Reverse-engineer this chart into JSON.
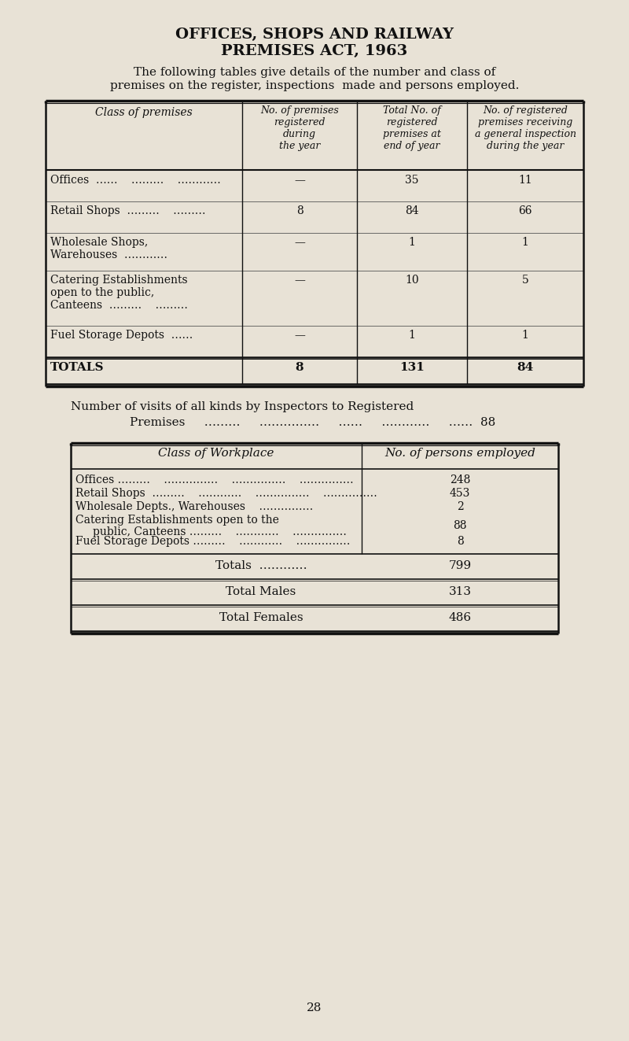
{
  "bg_color": "#e8e2d6",
  "text_color": "#1a1a1a",
  "title_line1": "OFFICES, SHOPS AND RAILWAY",
  "title_line2": "PREMISES ACT, 1963",
  "page_number": "28",
  "fig_w": 8.0,
  "fig_h": 13.23,
  "dpi": 100
}
